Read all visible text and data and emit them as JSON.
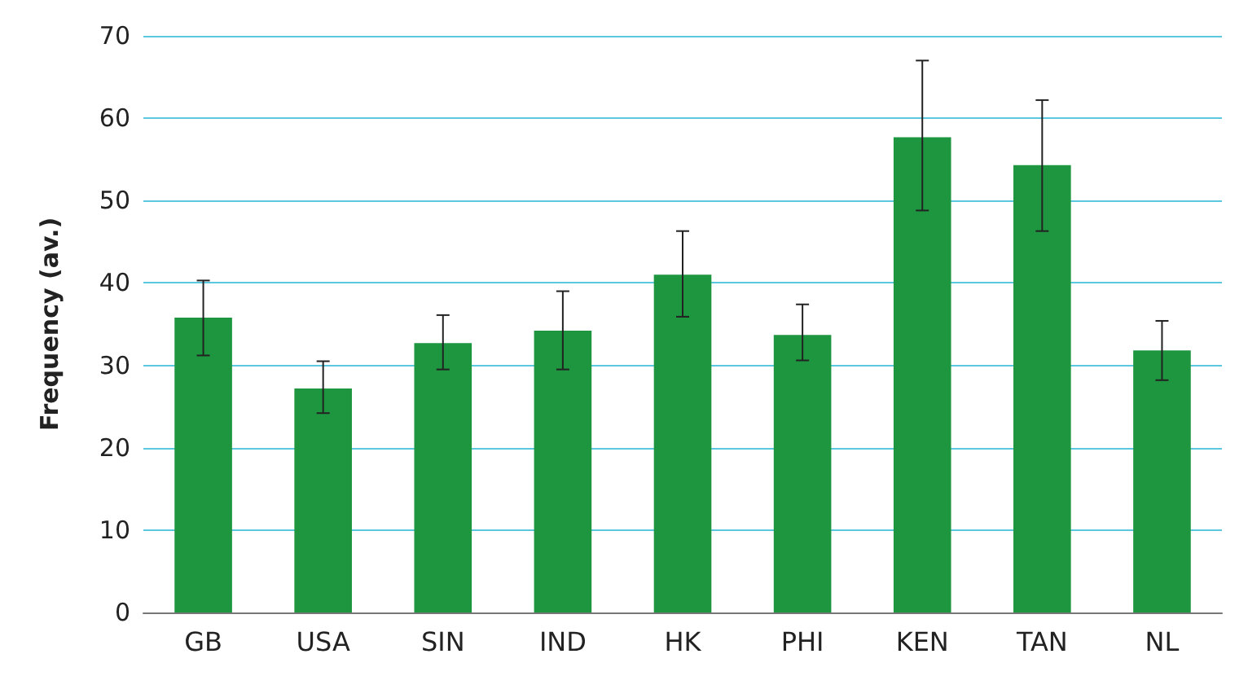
{
  "chart_data": {
    "type": "bar",
    "ylabel": "Frequency (av.)",
    "categories": [
      "GB",
      "USA",
      "SIN",
      "IND",
      "HK",
      "PHI",
      "KEN",
      "TAN",
      "NL"
    ],
    "values": [
      35.8,
      27.2,
      32.7,
      34.2,
      41.0,
      33.7,
      57.7,
      54.3,
      31.8
    ],
    "errors": [
      [
        31.2,
        40.3
      ],
      [
        24.2,
        30.5
      ],
      [
        29.5,
        36.1
      ],
      [
        29.5,
        39.0
      ],
      [
        35.9,
        46.3
      ],
      [
        30.6,
        37.4
      ],
      [
        48.8,
        67.0
      ],
      [
        46.3,
        62.2
      ],
      [
        28.2,
        35.4
      ]
    ],
    "color": "#1e9640",
    "ylim": [
      0,
      70
    ],
    "yticks": [
      0,
      10,
      20,
      30,
      40,
      50,
      60,
      70
    ],
    "grid": "y"
  }
}
